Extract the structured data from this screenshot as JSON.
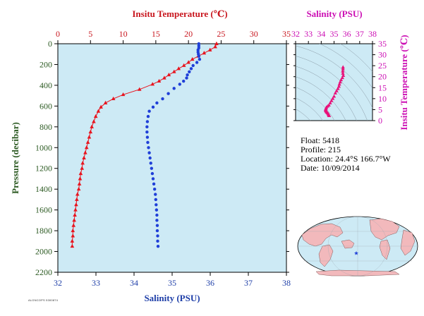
{
  "main_chart": {
    "top_axis_label": "Insitu Temperature (℃)",
    "bottom_axis_label": "Salinity (PSU)",
    "left_axis_label": "Pressure (decibar)",
    "top_ticks": [
      "0",
      "5",
      "10",
      "15",
      "20",
      "25",
      "30",
      "35"
    ],
    "bottom_ticks": [
      "32",
      "33",
      "34",
      "35",
      "36",
      "37",
      "38"
    ],
    "left_ticks": [
      "0",
      "200",
      "400",
      "600",
      "800",
      "1000",
      "1200",
      "1400",
      "1600",
      "1800",
      "2000",
      "2200"
    ]
  },
  "ts_chart": {
    "top_axis_label": "Salinity (PSU)",
    "right_axis_label": "Insitu Temperature (℃)",
    "top_ticks": [
      "32",
      "33",
      "34",
      "35",
      "36",
      "37",
      "38"
    ],
    "right_ticks": [
      "0",
      "5",
      "10",
      "15",
      "20",
      "25",
      "30",
      "35"
    ]
  },
  "info": {
    "float": "Float:  5418",
    "profile": "Profile:  215",
    "location": "Location:  24.4°S  166.7°W",
    "date": "Date:  10/09/2014"
  },
  "credit": "ALGNCOPS 5300874",
  "colors": {
    "plot_bg": "#cdeaf5",
    "temperature": "#e8141e",
    "salinity": "#1f3fd8",
    "ts": "#e8127a",
    "axis_label_temp": "#c8161e",
    "axis_label_press": "#2c5a22",
    "axis_label_sal": "#1f3fa8",
    "ts_label": "#cc10b4"
  },
  "chart_data": [
    {
      "type": "line",
      "series": [
        {
          "name": "Insitu Temperature",
          "x_units": "degC",
          "points": [
            [
              24.3,
              0
            ],
            [
              24.1,
              30
            ],
            [
              23.3,
              60
            ],
            [
              22.4,
              90
            ],
            [
              21.5,
              120
            ],
            [
              20.6,
              150
            ],
            [
              20.0,
              180
            ],
            [
              19.3,
              210
            ],
            [
              18.5,
              240
            ],
            [
              17.8,
              270
            ],
            [
              17.0,
              300
            ],
            [
              16.3,
              330
            ],
            [
              15.5,
              360
            ],
            [
              14.5,
              390
            ],
            [
              12.5,
              440
            ],
            [
              10.0,
              490
            ],
            [
              8.5,
              530
            ],
            [
              7.3,
              570
            ],
            [
              6.6,
              610
            ],
            [
              6.2,
              650
            ],
            [
              5.8,
              700
            ],
            [
              5.5,
              750
            ],
            [
              5.2,
              800
            ],
            [
              5.0,
              850
            ],
            [
              4.8,
              900
            ],
            [
              4.6,
              950
            ],
            [
              4.4,
              1000
            ],
            [
              4.2,
              1050
            ],
            [
              4.0,
              1100
            ],
            [
              3.8,
              1150
            ],
            [
              3.7,
              1200
            ],
            [
              3.5,
              1250
            ],
            [
              3.4,
              1300
            ],
            [
              3.3,
              1350
            ],
            [
              3.2,
              1400
            ],
            [
              3.0,
              1450
            ],
            [
              2.9,
              1500
            ],
            [
              2.8,
              1550
            ],
            [
              2.7,
              1600
            ],
            [
              2.6,
              1650
            ],
            [
              2.5,
              1700
            ],
            [
              2.4,
              1750
            ],
            [
              2.3,
              1800
            ],
            [
              2.3,
              1850
            ],
            [
              2.2,
              1900
            ],
            [
              2.2,
              1950
            ]
          ]
        },
        {
          "name": "Salinity",
          "x_units": "PSU",
          "points": [
            [
              35.7,
              0
            ],
            [
              35.7,
              20
            ],
            [
              35.7,
              40
            ],
            [
              35.68,
              60
            ],
            [
              35.68,
              80
            ],
            [
              35.69,
              100
            ],
            [
              35.7,
              120
            ],
            [
              35.72,
              150
            ],
            [
              35.65,
              180
            ],
            [
              35.55,
              210
            ],
            [
              35.5,
              240
            ],
            [
              35.45,
              270
            ],
            [
              35.4,
              300
            ],
            [
              35.38,
              330
            ],
            [
              35.3,
              360
            ],
            [
              35.2,
              390
            ],
            [
              35.05,
              430
            ],
            [
              34.9,
              480
            ],
            [
              34.75,
              530
            ],
            [
              34.6,
              570
            ],
            [
              34.5,
              610
            ],
            [
              34.4,
              650
            ],
            [
              34.37,
              700
            ],
            [
              34.35,
              750
            ],
            [
              34.34,
              800
            ],
            [
              34.34,
              850
            ],
            [
              34.35,
              900
            ],
            [
              34.36,
              950
            ],
            [
              34.38,
              1000
            ],
            [
              34.4,
              1050
            ],
            [
              34.42,
              1100
            ],
            [
              34.44,
              1150
            ],
            [
              34.46,
              1200
            ],
            [
              34.48,
              1250
            ],
            [
              34.5,
              1300
            ],
            [
              34.52,
              1350
            ],
            [
              34.54,
              1400
            ],
            [
              34.56,
              1450
            ],
            [
              34.57,
              1500
            ],
            [
              34.58,
              1550
            ],
            [
              34.59,
              1600
            ],
            [
              34.6,
              1650
            ],
            [
              34.6,
              1700
            ],
            [
              34.61,
              1750
            ],
            [
              34.61,
              1800
            ],
            [
              34.62,
              1850
            ],
            [
              34.62,
              1900
            ],
            [
              34.63,
              1950
            ]
          ]
        }
      ],
      "ylim": [
        2200,
        0
      ],
      "xlim_top": [
        0,
        35
      ],
      "xlim_bottom": [
        32,
        38
      ]
    },
    {
      "type": "scatter",
      "series": [
        {
          "points": [
            [
              35.7,
              24.3
            ],
            [
              35.7,
              23.5
            ],
            [
              35.68,
              22.5
            ],
            [
              35.69,
              21.5
            ],
            [
              35.72,
              20.5
            ],
            [
              35.65,
              19.5
            ],
            [
              35.55,
              18.5
            ],
            [
              35.48,
              17.5
            ],
            [
              35.42,
              16.5
            ],
            [
              35.38,
              15.5
            ],
            [
              35.3,
              14.5
            ],
            [
              35.2,
              13.5
            ],
            [
              35.1,
              12.5
            ],
            [
              35.0,
              11.0
            ],
            [
              34.9,
              10.0
            ],
            [
              34.8,
              9.0
            ],
            [
              34.7,
              8.0
            ],
            [
              34.6,
              7.0
            ],
            [
              34.5,
              6.5
            ],
            [
              34.4,
              6.0
            ],
            [
              34.37,
              5.5
            ],
            [
              34.35,
              5.2
            ],
            [
              34.34,
              4.8
            ],
            [
              34.36,
              4.4
            ],
            [
              34.4,
              4.0
            ],
            [
              34.45,
              3.7
            ],
            [
              34.5,
              3.4
            ],
            [
              34.55,
              3.0
            ],
            [
              34.58,
              2.7
            ],
            [
              34.6,
              2.4
            ],
            [
              34.62,
              2.2
            ]
          ]
        }
      ],
      "xlim": [
        32,
        38
      ],
      "ylim": [
        0,
        35
      ]
    }
  ]
}
